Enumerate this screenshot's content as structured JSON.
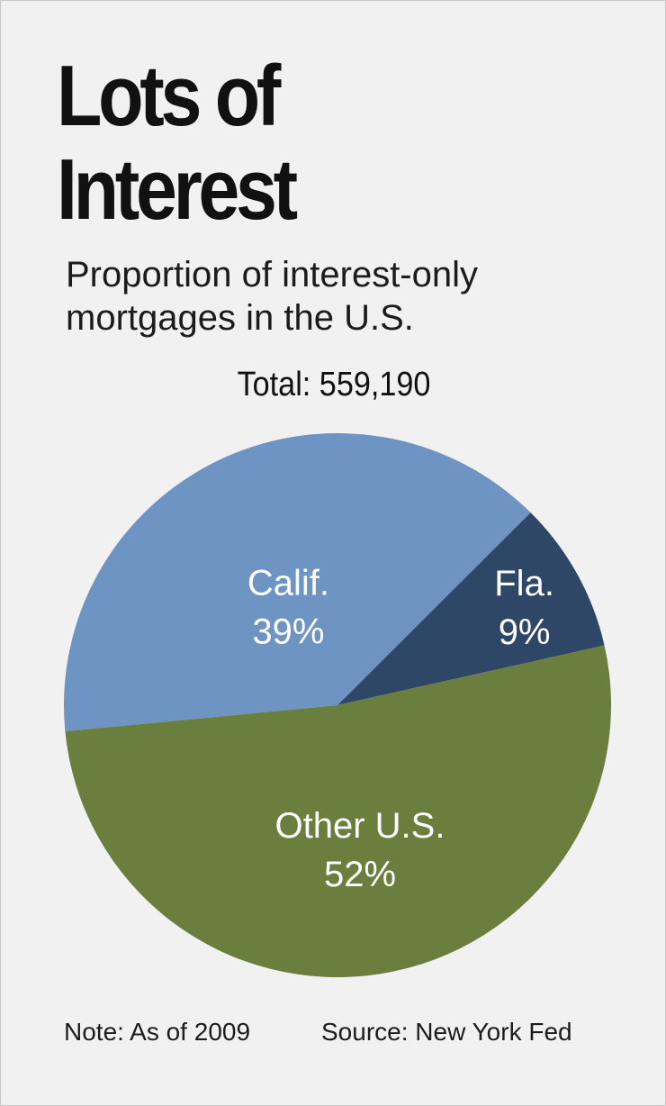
{
  "title_lines": [
    "Lots of",
    "Interest"
  ],
  "subtitle_lines": [
    "Proportion of interest-only",
    "mortgages in the U.S."
  ],
  "total_label": "Total: 559,190",
  "chart_data": {
    "type": "pie",
    "title": "Lots of Interest",
    "subtitle": "Proportion of interest-only mortgages in the U.S.",
    "total": 559190,
    "slices": [
      {
        "label": "Calif.",
        "value": 39,
        "display": "39%",
        "color": "#6d94c2"
      },
      {
        "label": "Fla.",
        "value": 9,
        "display": "9%",
        "color": "#2f4766"
      },
      {
        "label": "Other U.S.",
        "value": 52,
        "display": "52%",
        "color": "#6a7f3e"
      }
    ],
    "unit": "%"
  },
  "footer": {
    "note": "Note: As of 2009",
    "source": "Source: New York Fed"
  },
  "colors": {
    "background": "#f1f1f2",
    "text": "#111111",
    "slice_label": "#ffffff"
  }
}
